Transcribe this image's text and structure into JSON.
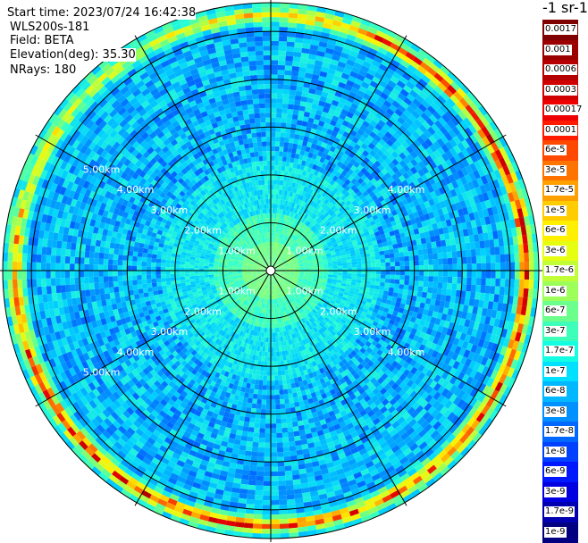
{
  "header": {
    "start_time": "Start time: 2023/07/24 16:42:38",
    "instrument": "WLS200s-181",
    "field": "Field: BETA",
    "elevation": "Elevation(deg): 35.30",
    "nrays": "NRays: 180"
  },
  "colorbar": {
    "unit": "-1 sr-1",
    "labels": [
      "0.0017",
      "0.001",
      "0.0006",
      "0.0003",
      "0.00017",
      "0.0001",
      "6e-5",
      "3e-5",
      "1.7e-5",
      "1e-5",
      "6e-6",
      "3e-6",
      "1.7e-6",
      "1e-6",
      "6e-7",
      "3e-7",
      "1.7e-7",
      "1e-7",
      "6e-8",
      "3e-8",
      "1.7e-8",
      "1e-8",
      "6e-9",
      "3e-9",
      "1.7e-9",
      "1e-9"
    ],
    "colors": [
      "#800000",
      "#9a0000",
      "#b40000",
      "#d00000",
      "#ee0000",
      "#ff1a00",
      "#ff4800",
      "#ff7400",
      "#ffa000",
      "#ffcc00",
      "#fff000",
      "#e6ff10",
      "#c0ff37",
      "#9cff5a",
      "#6bff8c",
      "#3dffba",
      "#14ffe2",
      "#00e0ff",
      "#00b8ff",
      "#0090ff",
      "#0068ff",
      "#0040ff",
      "#0018ff",
      "#0000e0",
      "#0000b0",
      "#000080"
    ]
  },
  "chart_data": {
    "type": "heatmap",
    "projection": "polar (PPI scan)",
    "field": "BETA",
    "rays": 180,
    "range_rings_km": [
      1,
      2,
      3,
      4,
      5
    ],
    "ring_labels": [
      "1.00km",
      "2.00km",
      "3.00km",
      "4.00km",
      "5.00km"
    ],
    "radial_lines_deg": [
      0,
      30,
      60,
      90,
      120,
      150,
      180,
      210,
      240,
      270,
      300,
      330
    ],
    "range_max_km": 5.6,
    "description_values": {
      "inner_region_0_1km": "3e-7 to 1e-6",
      "mid_region_1_5km": "1e-8 to 1e-7",
      "outer_ring_5.2_5.5km": "1e-6 to 6e-5"
    }
  }
}
